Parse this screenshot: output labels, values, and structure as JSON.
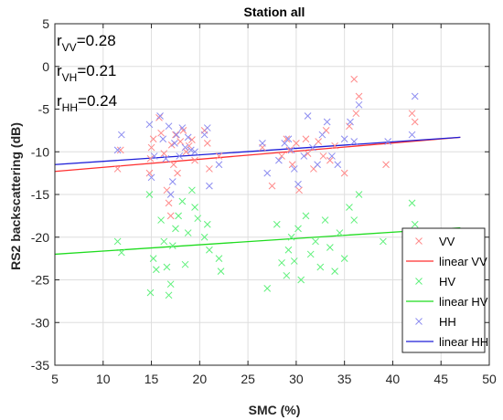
{
  "chart_data": {
    "type": "scatter",
    "title": "Station all",
    "xlabel": "SMC (%)",
    "ylabel": "RS2 backscattering (dB)",
    "xlim": [
      5,
      50
    ],
    "ylim": [
      -35,
      5
    ],
    "xticks": [
      5,
      10,
      15,
      20,
      25,
      30,
      35,
      40,
      45,
      50
    ],
    "yticks": [
      -35,
      -30,
      -25,
      -20,
      -15,
      -10,
      -5,
      0,
      5
    ],
    "grid": true,
    "legend_position": "bottom-right",
    "correlations": [
      {
        "base": "r",
        "sub": "VV",
        "value": "=0.28"
      },
      {
        "base": "r",
        "sub": "VH",
        "value": "=0.21"
      },
      {
        "base": "r",
        "sub": "HH",
        "value": "=0.24"
      }
    ],
    "legend": [
      "VV",
      "linear VV",
      "HV",
      "linear HV",
      "HH",
      "linear HH"
    ],
    "series": [
      {
        "name": "VV",
        "marker": "x",
        "color": "#ff8a8a",
        "points": [
          [
            11.5,
            -12.0
          ],
          [
            11.8,
            -9.8
          ],
          [
            14.8,
            -12.5
          ],
          [
            15.0,
            -9.5
          ],
          [
            14.9,
            -10.8
          ],
          [
            15.2,
            -8.5
          ],
          [
            15.8,
            -6.0
          ],
          [
            16.0,
            -7.8
          ],
          [
            16.3,
            -10.2
          ],
          [
            16.6,
            -14.5
          ],
          [
            16.8,
            -16.0
          ],
          [
            17.0,
            -17.5
          ],
          [
            17.1,
            -9.2
          ],
          [
            17.3,
            -11.5
          ],
          [
            17.5,
            -8.0
          ],
          [
            17.7,
            -12.5
          ],
          [
            18.0,
            -8.8
          ],
          [
            18.3,
            -7.5
          ],
          [
            18.6,
            -10.0
          ],
          [
            18.9,
            -9.3
          ],
          [
            19.2,
            -8.6
          ],
          [
            19.5,
            -11.0
          ],
          [
            20.5,
            -7.5
          ],
          [
            20.8,
            -9.0
          ],
          [
            21.0,
            -12.0
          ],
          [
            22.0,
            -10.5
          ],
          [
            26.5,
            -9.5
          ],
          [
            27.5,
            -14.0
          ],
          [
            28.5,
            -10.5
          ],
          [
            29.0,
            -8.5
          ],
          [
            29.3,
            -9.8
          ],
          [
            29.6,
            -11.5
          ],
          [
            30.0,
            -9.0
          ],
          [
            30.3,
            -14.5
          ],
          [
            31.0,
            -8.5
          ],
          [
            31.2,
            -10.2
          ],
          [
            31.8,
            -12.0
          ],
          [
            32.3,
            -8.8
          ],
          [
            32.8,
            -10.5
          ],
          [
            33.1,
            -7.5
          ],
          [
            33.5,
            -11.0
          ],
          [
            34.0,
            -9.3
          ],
          [
            35.0,
            -12.5
          ],
          [
            35.5,
            -7.0
          ],
          [
            36.0,
            -1.5
          ],
          [
            36.2,
            -5.5
          ],
          [
            36.5,
            -3.5
          ],
          [
            39.3,
            -11.5
          ],
          [
            42.0,
            -5.5
          ],
          [
            42.3,
            -6.5
          ]
        ]
      },
      {
        "name": "HV",
        "marker": "x",
        "color": "#5ef07a",
        "points": [
          [
            11.5,
            -20.5
          ],
          [
            11.9,
            -21.8
          ],
          [
            14.8,
            -15.0
          ],
          [
            14.9,
            -26.5
          ],
          [
            15.2,
            -22.5
          ],
          [
            15.5,
            -23.8
          ],
          [
            16.0,
            -18.0
          ],
          [
            16.3,
            -20.5
          ],
          [
            16.6,
            -23.5
          ],
          [
            16.8,
            -26.8
          ],
          [
            17.0,
            -25.5
          ],
          [
            17.2,
            -21.0
          ],
          [
            17.5,
            -19.0
          ],
          [
            17.8,
            -17.5
          ],
          [
            18.2,
            -15.8
          ],
          [
            18.5,
            -23.2
          ],
          [
            18.8,
            -19.5
          ],
          [
            19.2,
            -14.5
          ],
          [
            19.5,
            -16.5
          ],
          [
            19.8,
            -17.8
          ],
          [
            20.5,
            -20.0
          ],
          [
            20.8,
            -18.5
          ],
          [
            21.0,
            -21.5
          ],
          [
            22.0,
            -22.5
          ],
          [
            22.2,
            -24.0
          ],
          [
            27.0,
            -26.0
          ],
          [
            28.0,
            -18.5
          ],
          [
            28.5,
            -23.0
          ],
          [
            29.0,
            -24.5
          ],
          [
            29.2,
            -21.5
          ],
          [
            29.5,
            -20.0
          ],
          [
            29.8,
            -22.8
          ],
          [
            30.2,
            -19.0
          ],
          [
            30.5,
            -25.0
          ],
          [
            31.0,
            -17.5
          ],
          [
            31.5,
            -22.0
          ],
          [
            32.0,
            -20.5
          ],
          [
            32.5,
            -23.5
          ],
          [
            33.0,
            -18.0
          ],
          [
            33.5,
            -21.2
          ],
          [
            34.0,
            -24.0
          ],
          [
            34.5,
            -19.5
          ],
          [
            35.0,
            -22.5
          ],
          [
            35.5,
            -16.5
          ],
          [
            36.0,
            -18.0
          ],
          [
            36.5,
            -15.0
          ],
          [
            39.0,
            -20.5
          ],
          [
            42.0,
            -16.0
          ],
          [
            42.3,
            -18.5
          ]
        ]
      },
      {
        "name": "HH",
        "marker": "x",
        "color": "#8c8cf0",
        "points": [
          [
            11.5,
            -9.8
          ],
          [
            11.9,
            -8.0
          ],
          [
            14.8,
            -6.8
          ],
          [
            15.0,
            -13.0
          ],
          [
            15.3,
            -10.5
          ],
          [
            15.9,
            -5.8
          ],
          [
            16.2,
            -8.5
          ],
          [
            16.5,
            -10.8
          ],
          [
            16.8,
            -7.0
          ],
          [
            17.0,
            -15.0
          ],
          [
            17.2,
            -13.5
          ],
          [
            17.4,
            -9.0
          ],
          [
            17.6,
            -8.0
          ],
          [
            17.9,
            -10.5
          ],
          [
            18.2,
            -7.2
          ],
          [
            18.5,
            -9.5
          ],
          [
            18.8,
            -8.3
          ],
          [
            19.1,
            -9.8
          ],
          [
            19.5,
            -10.0
          ],
          [
            20.5,
            -8.0
          ],
          [
            20.8,
            -7.2
          ],
          [
            21.0,
            -14.0
          ],
          [
            22.0,
            -11.5
          ],
          [
            26.5,
            -9.0
          ],
          [
            27.0,
            -12.5
          ],
          [
            28.2,
            -11.0
          ],
          [
            28.8,
            -9.0
          ],
          [
            29.2,
            -8.5
          ],
          [
            29.5,
            -9.8
          ],
          [
            29.8,
            -12.0
          ],
          [
            30.2,
            -13.8
          ],
          [
            30.8,
            -10.5
          ],
          [
            31.2,
            -5.8
          ],
          [
            31.7,
            -9.5
          ],
          [
            32.2,
            -11.5
          ],
          [
            32.7,
            -8.0
          ],
          [
            33.2,
            -6.5
          ],
          [
            33.7,
            -10.5
          ],
          [
            34.3,
            -11.5
          ],
          [
            35.0,
            -8.5
          ],
          [
            35.6,
            -6.5
          ],
          [
            36.0,
            -8.8
          ],
          [
            36.5,
            -4.5
          ],
          [
            39.5,
            -8.8
          ],
          [
            42.0,
            -8.0
          ],
          [
            42.3,
            -3.5
          ]
        ]
      }
    ],
    "fits": [
      {
        "name": "linear VV",
        "color": "#ff2e2e",
        "x": [
          5,
          47
        ],
        "y": [
          -12.3,
          -8.3
        ]
      },
      {
        "name": "linear HV",
        "color": "#1fdc1f",
        "x": [
          5,
          47
        ],
        "y": [
          -22.0,
          -18.9
        ]
      },
      {
        "name": "linear HH",
        "color": "#1f1fd8",
        "x": [
          5,
          47
        ],
        "y": [
          -11.5,
          -8.3
        ]
      }
    ]
  }
}
